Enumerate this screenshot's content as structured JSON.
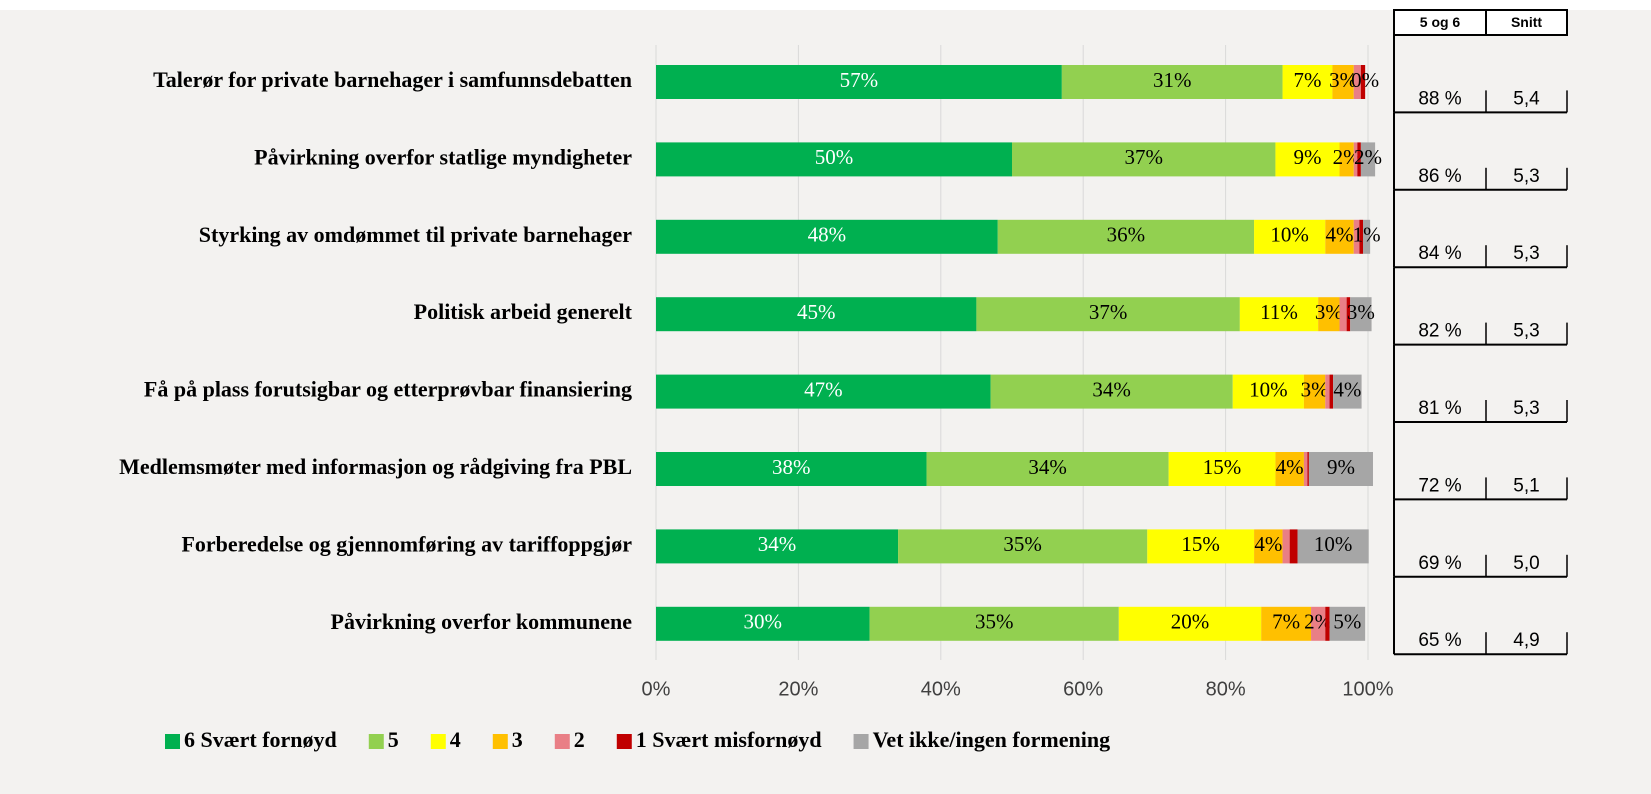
{
  "chart_data": {
    "type": "stacked-bar-horizontal",
    "categories": [
      "Talerør for private barnehager i samfunnsdebatten",
      "Påvirkning overfor statlige myndigheter",
      "Styrking av omdømmet til private barnehager",
      "Politisk arbeid generelt",
      "Få på plass forutsigbar og etterprøvbar finansiering",
      "Medlemsmøter med informasjon og rådgiving fra PBL",
      "Forberedelse og gjennomføring av tariffoppgjør",
      "Påvirkning overfor kommunene"
    ],
    "series": [
      {
        "name": "6 Svært fornøyd",
        "color": "#00b050",
        "label_color": "#ffffff",
        "values": [
          57,
          50,
          48,
          45,
          47,
          38,
          34,
          30
        ],
        "value_labels": [
          "57%",
          "50%",
          "48%",
          "45%",
          "47%",
          "38%",
          "34%",
          "30%"
        ]
      },
      {
        "name": "5",
        "color": "#92d050",
        "values": [
          31,
          37,
          36,
          37,
          34,
          34,
          35,
          35
        ],
        "value_labels": [
          "31%",
          "37%",
          "36%",
          "37%",
          "34%",
          "34%",
          "35%",
          "35%"
        ]
      },
      {
        "name": "4",
        "color": "#ffff00",
        "values": [
          7,
          9,
          10,
          11,
          10,
          15,
          15,
          20
        ],
        "value_labels": [
          "7%",
          "9%",
          "10%",
          "11%",
          "10%",
          "15%",
          "15%",
          "20%"
        ]
      },
      {
        "name": "3",
        "color": "#ffc000",
        "values": [
          3,
          2,
          4,
          3,
          3,
          4,
          4,
          7
        ],
        "value_labels": [
          "3%",
          "2%",
          "4%",
          "3%",
          "3%",
          "4%",
          "4%",
          "7%"
        ]
      },
      {
        "name": "2",
        "color": "#e97f86",
        "values": [
          1,
          0.5,
          0.8,
          1,
          0.6,
          0.5,
          1,
          2
        ],
        "value_labels": [
          null,
          null,
          null,
          null,
          null,
          null,
          null,
          "2%"
        ]
      },
      {
        "name": "1 Svært misfornøyd",
        "color": "#c00000",
        "values": [
          0.6,
          0.5,
          0.5,
          0.5,
          0.5,
          0.2,
          1.1,
          0.6
        ],
        "value_labels": [
          null,
          null,
          null,
          null,
          null,
          null,
          null,
          null
        ]
      },
      {
        "name": "Vet ikke/ingen formening",
        "color": "#a6a6a6",
        "values": [
          0,
          2,
          1,
          3,
          4,
          9,
          10,
          5
        ],
        "value_labels": [
          "0%",
          "2%",
          "1%",
          "3%",
          "4%",
          "9%",
          "10%",
          "5%"
        ]
      }
    ],
    "xlim": [
      0,
      100
    ],
    "xticks": [
      {
        "value": 0,
        "label": "0%"
      },
      {
        "value": 20,
        "label": "20%"
      },
      {
        "value": 40,
        "label": "40%"
      },
      {
        "value": 60,
        "label": "60%"
      },
      {
        "value": 80,
        "label": "80%"
      },
      {
        "value": 100,
        "label": "100%"
      }
    ],
    "grid": true,
    "legend": "bottom"
  },
  "table": {
    "headers": [
      "5 og 6",
      "Snitt"
    ],
    "rows": [
      [
        "88 %",
        "5,4"
      ],
      [
        "86 %",
        "5,3"
      ],
      [
        "84 %",
        "5,3"
      ],
      [
        "82 %",
        "5,3"
      ],
      [
        "81 %",
        "5,3"
      ],
      [
        "72 %",
        "5,1"
      ],
      [
        "69 %",
        "5,0"
      ],
      [
        "65 %",
        "4,9"
      ]
    ]
  }
}
